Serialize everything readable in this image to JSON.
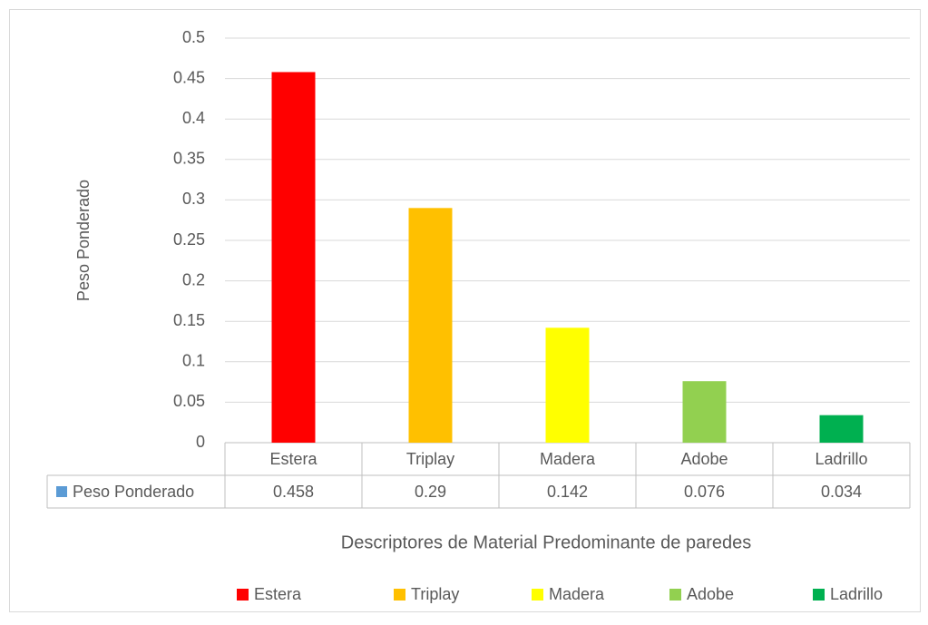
{
  "chart_data": {
    "type": "bar",
    "categories": [
      "Estera",
      "Triplay",
      "Madera",
      "Adobe",
      "Ladrillo"
    ],
    "colors": [
      "#ff0000",
      "#ffc000",
      "#ffff00",
      "#92d050",
      "#00b050"
    ],
    "series": [
      {
        "name": "Peso Ponderado",
        "color": "#5b9bd5",
        "values": [
          0.458,
          0.29,
          0.142,
          0.076,
          0.034
        ]
      }
    ],
    "ylim": [
      0,
      0.5
    ],
    "yticks": [
      0,
      0.05,
      0.1,
      0.15,
      0.2,
      0.25,
      0.3,
      0.35,
      0.4,
      0.45,
      0.5
    ],
    "grid": true,
    "y_label": "Peso Ponderado",
    "x_label": "Descriptores de Material Predominante de paredes",
    "legend": "bottom"
  }
}
